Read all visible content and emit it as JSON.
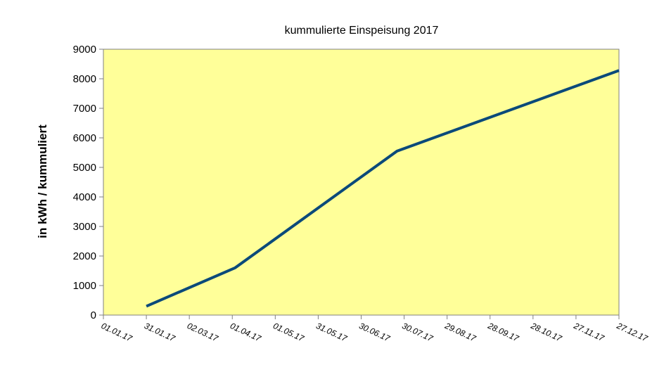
{
  "chart_data": {
    "type": "line",
    "title": "kummulierte Einspeisung 2017",
    "ylabel": "in kWh / kummuliert",
    "xlabel": "",
    "ylim": [
      0,
      9000
    ],
    "y_ticks": [
      0,
      1000,
      2000,
      3000,
      4000,
      5000,
      6000,
      7000,
      8000,
      9000
    ],
    "x_ticks": [
      "01.01.17",
      "31.01.17",
      "02.03.17",
      "01.04.17",
      "01.05.17",
      "31.05.17",
      "30.06.17",
      "30.07.17",
      "29.08.17",
      "28.09.17",
      "28.10.17",
      "27.11.17",
      "27.12.17"
    ],
    "x_range": [
      "01.01.17",
      "27.12.17"
    ],
    "grid": false,
    "legend": "none",
    "series": [
      {
        "x": [
          "31.01.17",
          "03.04.17",
          "25.07.17",
          "27.12.17"
        ],
        "y": [
          300,
          1600,
          5550,
          8280
        ]
      }
    ],
    "colors": {
      "plot_background": "#FFFF99",
      "line": "#0B4A7A",
      "axis": "#808080"
    }
  }
}
